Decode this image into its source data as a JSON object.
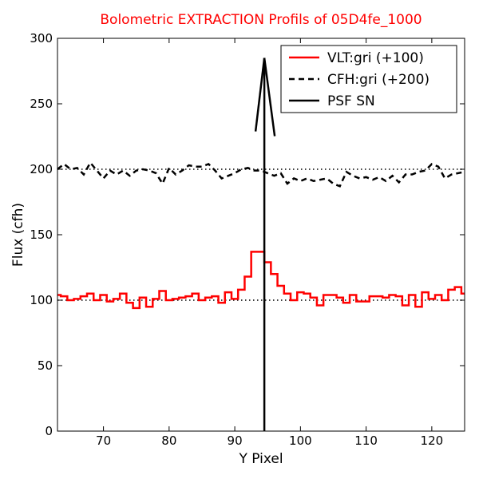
{
  "chart_data": {
    "type": "line",
    "title": "Bolometric EXTRACTION Profils of 05D4fe_1000",
    "title_color": "#ff0000",
    "xlabel": "Y Pixel",
    "ylabel": "Flux (cfh)",
    "xlim": [
      63,
      125
    ],
    "ylim": [
      0,
      300
    ],
    "x_ticks": [
      70,
      80,
      90,
      100,
      110,
      120
    ],
    "y_ticks": [
      0,
      50,
      100,
      150,
      200,
      250,
      300
    ],
    "grid": false,
    "legend_position": "top-right",
    "series": [
      {
        "name": "VLT:gri (+100)",
        "color": "#ff0000",
        "style": "steps",
        "x": [
          63,
          64,
          65,
          66,
          67,
          68,
          69,
          70,
          71,
          72,
          73,
          74,
          75,
          76,
          77,
          78,
          79,
          80,
          81,
          82,
          83,
          84,
          85,
          86,
          87,
          88,
          89,
          90,
          91,
          92,
          93,
          94,
          95,
          96,
          97,
          98,
          99,
          100,
          101,
          102,
          103,
          104,
          105,
          106,
          107,
          108,
          109,
          110,
          111,
          112,
          113,
          114,
          115,
          116,
          117,
          118,
          119,
          120,
          121,
          122,
          123,
          124,
          125
        ],
        "y": [
          104,
          103,
          100,
          101,
          103,
          105,
          100,
          104,
          99,
          101,
          105,
          98,
          94,
          102,
          95,
          101,
          107,
          100,
          101,
          102,
          103,
          105,
          100,
          102,
          103,
          98,
          106,
          101,
          108,
          118,
          137,
          137,
          129,
          120,
          111,
          105,
          100,
          106,
          105,
          102,
          96,
          104,
          104,
          102,
          98,
          104,
          99,
          99,
          103,
          103,
          102,
          104,
          103,
          96,
          104,
          95,
          106,
          101,
          104,
          100,
          108,
          110,
          105
        ]
      },
      {
        "name": "CFH:gri (+200)",
        "color": "#000000",
        "style": "dashed",
        "x": [
          63,
          64,
          65,
          66,
          67,
          68,
          69,
          70,
          71,
          72,
          73,
          74,
          75,
          76,
          77,
          78,
          79,
          80,
          81,
          82,
          83,
          84,
          85,
          86,
          87,
          88,
          89,
          90,
          91,
          92,
          93,
          94,
          95,
          96,
          97,
          98,
          99,
          100,
          101,
          102,
          103,
          104,
          105,
          106,
          107,
          108,
          109,
          110,
          111,
          112,
          113,
          114,
          115,
          116,
          117,
          118,
          119,
          120,
          121,
          122,
          123,
          124,
          125
        ],
        "y": [
          200,
          204,
          200,
          201,
          196,
          205,
          199,
          193,
          199,
          196,
          199,
          195,
          199,
          200,
          199,
          197,
          189,
          201,
          196,
          199,
          203,
          202,
          202,
          204,
          199,
          193,
          195,
          197,
          200,
          201,
          199,
          199,
          197,
          195,
          197,
          189,
          193,
          191,
          193,
          191,
          192,
          193,
          189,
          187,
          198,
          195,
          193,
          194,
          192,
          194,
          191,
          195,
          190,
          196,
          196,
          198,
          199,
          204,
          202,
          193,
          196,
          197,
          198
        ]
      },
      {
        "name": "PSF SN",
        "color": "#000000",
        "style": "arrow",
        "x": [
          94.5,
          94.5
        ],
        "y": [
          0,
          285
        ]
      }
    ],
    "reference_lines": [
      {
        "y": 100,
        "style": "dotted",
        "color": "#000000"
      },
      {
        "y": 200,
        "style": "dotted",
        "color": "#000000"
      }
    ]
  }
}
